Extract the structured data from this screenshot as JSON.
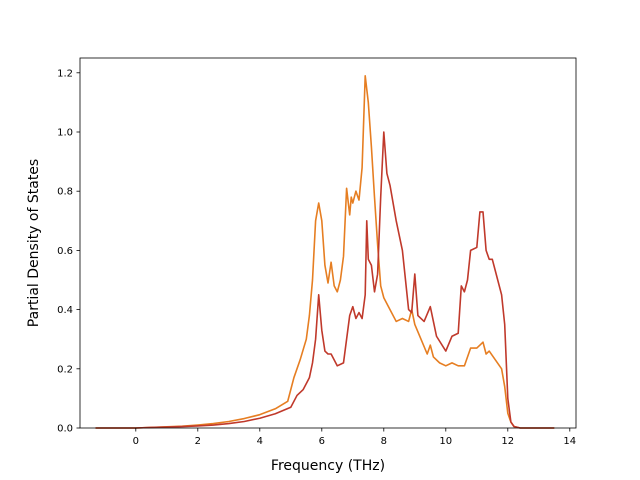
{
  "chart_data": {
    "type": "line",
    "title": "",
    "xlabel": "Frequency (THz)",
    "ylabel": "Partial Density of States",
    "xlim": [
      -1.8,
      14.2
    ],
    "ylim": [
      0.0,
      1.25
    ],
    "xticks": [
      0,
      2,
      4,
      6,
      8,
      10,
      12,
      14
    ],
    "xtick_labels": [
      "0",
      "2",
      "4",
      "6",
      "8",
      "10",
      "12",
      "14"
    ],
    "yticks": [
      0.0,
      0.2,
      0.4,
      0.6,
      0.8,
      1.0,
      1.2
    ],
    "ytick_labels": [
      "0.0",
      "0.2",
      "0.4",
      "0.6",
      "0.8",
      "1.0",
      "1.2"
    ],
    "grid": false,
    "legend": "none",
    "series": [
      {
        "color": "#e67e22",
        "x": [
          -1.3,
          -0.5,
          0,
          0.5,
          1,
          1.5,
          2,
          2.5,
          3,
          3.5,
          4,
          4.5,
          4.9,
          5.1,
          5.3,
          5.5,
          5.6,
          5.7,
          5.8,
          5.9,
          6.0,
          6.1,
          6.2,
          6.3,
          6.4,
          6.5,
          6.6,
          6.7,
          6.8,
          6.9,
          6.95,
          7.0,
          7.1,
          7.2,
          7.3,
          7.4,
          7.5,
          7.6,
          7.7,
          7.8,
          7.9,
          8.0,
          8.2,
          8.4,
          8.6,
          8.8,
          8.9,
          9.0,
          9.2,
          9.4,
          9.5,
          9.6,
          9.8,
          10.0,
          10.2,
          10.4,
          10.6,
          10.8,
          11.0,
          11.2,
          11.3,
          11.4,
          11.6,
          11.8,
          11.9,
          12.0,
          12.1,
          12.2,
          12.4,
          13.0,
          13.5
        ],
        "y": [
          0.0,
          0.0,
          0.0,
          0.002,
          0.004,
          0.006,
          0.01,
          0.015,
          0.022,
          0.032,
          0.045,
          0.065,
          0.09,
          0.17,
          0.23,
          0.3,
          0.38,
          0.5,
          0.7,
          0.76,
          0.7,
          0.55,
          0.49,
          0.56,
          0.48,
          0.46,
          0.5,
          0.58,
          0.81,
          0.72,
          0.78,
          0.76,
          0.8,
          0.77,
          0.88,
          1.19,
          1.1,
          0.95,
          0.78,
          0.62,
          0.48,
          0.44,
          0.4,
          0.36,
          0.37,
          0.36,
          0.4,
          0.35,
          0.3,
          0.25,
          0.28,
          0.24,
          0.22,
          0.21,
          0.22,
          0.21,
          0.21,
          0.27,
          0.27,
          0.29,
          0.25,
          0.26,
          0.23,
          0.2,
          0.14,
          0.05,
          0.02,
          0.005,
          0.0,
          0.0,
          0.0
        ]
      },
      {
        "color": "#c0392b",
        "x": [
          -1.3,
          -0.5,
          0,
          0.5,
          1,
          1.5,
          2,
          2.5,
          3,
          3.5,
          4,
          4.5,
          5.0,
          5.2,
          5.4,
          5.6,
          5.7,
          5.8,
          5.9,
          6.0,
          6.1,
          6.2,
          6.3,
          6.5,
          6.7,
          6.9,
          7.0,
          7.1,
          7.2,
          7.3,
          7.4,
          7.45,
          7.5,
          7.6,
          7.7,
          7.8,
          7.9,
          8.0,
          8.1,
          8.2,
          8.4,
          8.6,
          8.8,
          8.9,
          9.0,
          9.1,
          9.3,
          9.5,
          9.6,
          9.7,
          10.0,
          10.2,
          10.4,
          10.5,
          10.6,
          10.7,
          10.8,
          11.0,
          11.1,
          11.2,
          11.3,
          11.4,
          11.5,
          11.6,
          11.8,
          11.9,
          12.0,
          12.1,
          12.2,
          12.4,
          13.0,
          13.5
        ],
        "y": [
          0.0,
          0.0,
          0.0,
          0.002,
          0.003,
          0.005,
          0.007,
          0.01,
          0.015,
          0.022,
          0.033,
          0.048,
          0.07,
          0.11,
          0.13,
          0.17,
          0.22,
          0.3,
          0.45,
          0.33,
          0.26,
          0.25,
          0.25,
          0.21,
          0.22,
          0.38,
          0.41,
          0.37,
          0.39,
          0.37,
          0.45,
          0.7,
          0.57,
          0.55,
          0.46,
          0.52,
          0.78,
          1.0,
          0.86,
          0.82,
          0.7,
          0.6,
          0.4,
          0.39,
          0.52,
          0.38,
          0.36,
          0.41,
          0.36,
          0.31,
          0.26,
          0.31,
          0.32,
          0.48,
          0.46,
          0.5,
          0.6,
          0.61,
          0.73,
          0.73,
          0.6,
          0.57,
          0.57,
          0.53,
          0.45,
          0.35,
          0.1,
          0.02,
          0.005,
          0.0,
          0.0,
          0.0
        ]
      }
    ]
  }
}
